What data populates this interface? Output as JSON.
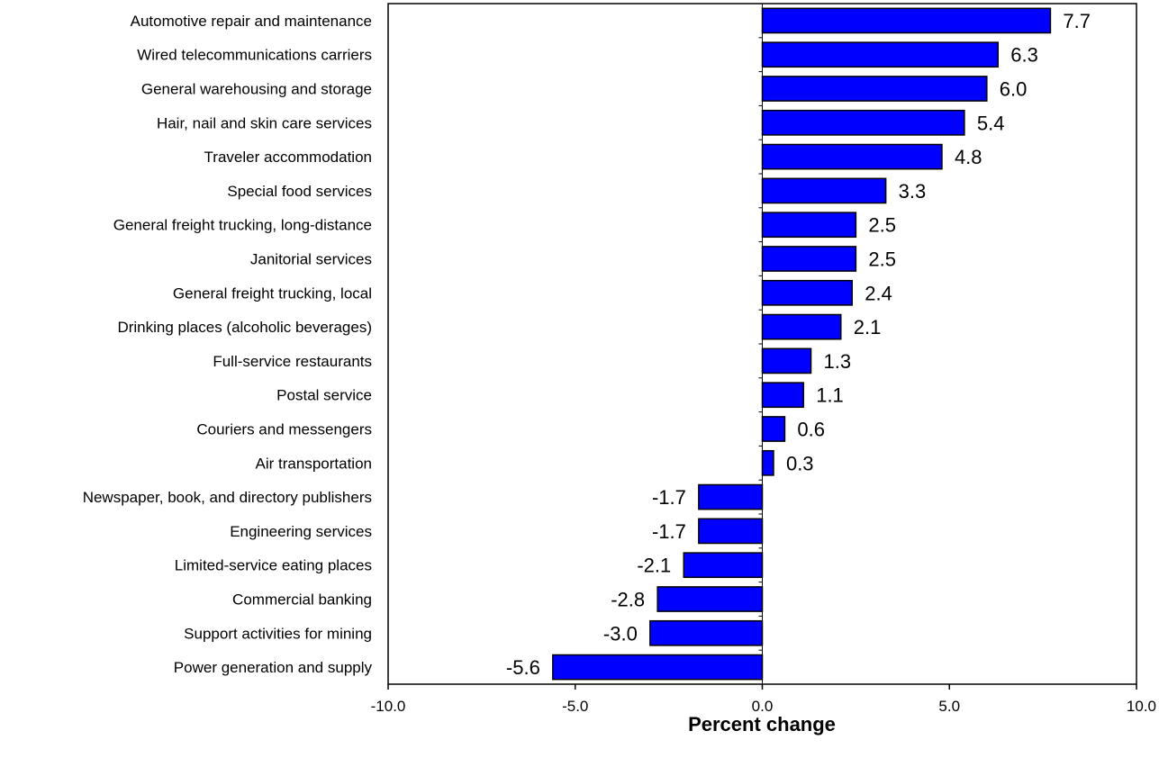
{
  "chart_data": {
    "type": "bar",
    "orientation": "horizontal",
    "categories": [
      "Automotive repair and maintenance",
      "Wired telecommunications carriers",
      "General warehousing and storage",
      "Hair, nail and skin care services",
      "Traveler accommodation",
      "Special food services",
      "General freight trucking, long-distance",
      "Janitorial services",
      "General freight trucking, local",
      "Drinking places (alcoholic beverages)",
      "Full-service restaurants",
      "Postal service",
      "Couriers and messengers",
      "Air transportation",
      "Newspaper, book, and directory publishers",
      "Engineering services",
      "Limited-service eating places",
      "Commercial banking",
      "Support activities for mining",
      "Power generation and supply"
    ],
    "values": [
      7.7,
      6.3,
      6.0,
      5.4,
      4.8,
      3.3,
      2.5,
      2.5,
      2.4,
      2.1,
      1.3,
      1.1,
      0.6,
      0.3,
      -1.7,
      -1.7,
      -2.1,
      -2.8,
      -3.0,
      -5.6
    ],
    "value_labels": [
      "7.7",
      "6.3",
      "6.0",
      "5.4",
      "4.8",
      "3.3",
      "2.5",
      "2.5",
      "2.4",
      "2.1",
      "1.3",
      "1.1",
      "0.6",
      "0.3",
      "-1.7",
      "-1.7",
      "-2.1",
      "-2.8",
      "-3.0",
      "-5.6"
    ],
    "xlabel": "Percent change",
    "xlim": [
      -10,
      10
    ],
    "xticks": [
      -10,
      -5,
      0,
      5,
      10
    ],
    "xtick_labels": [
      "-10.0",
      "-5.0",
      "0.0",
      "5.0",
      "10.0"
    ],
    "grid": false,
    "bar_color": "#0000ff",
    "bar_edge_color": "#000000"
  }
}
